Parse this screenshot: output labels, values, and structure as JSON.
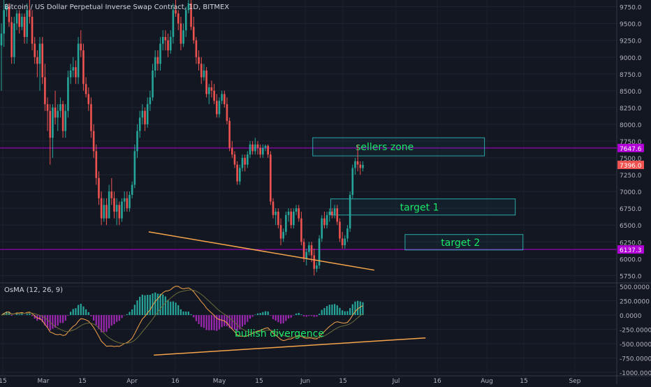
{
  "header": {
    "title": "Bitcoin / US Dollar Perpetual Inverse Swap Contract, 1D, BITMEX"
  },
  "osma": {
    "title": "OsMA (12, 26, 9)"
  },
  "colors": {
    "background": "#131722",
    "up": "#26a69a",
    "down": "#ef5350",
    "zone_border": "#2aa7a7",
    "zone_text": "#1be86a",
    "trendline": "#f5a44a",
    "horizontal_line": "#b000d6",
    "macd_line": "#f5a44a",
    "signal_line": "#6d6d3a",
    "hist_up": "#26a69a",
    "hist_down": "#9c27b0"
  },
  "chart_data": [
    {
      "type": "candlestick",
      "title": "Bitcoin / US Dollar Perpetual Inverse Swap Contract, 1D, BITMEX",
      "y_ticks": [
        "9750.0",
        "9500.0",
        "9250.0",
        "9000.0",
        "8750.0",
        "8500.0",
        "8250.0",
        "8000.0",
        "7750.0",
        "7500.0",
        "7250.0",
        "7000.0",
        "6750.0",
        "6500.0",
        "6250.0",
        "6000.0",
        "5750.0"
      ],
      "ylim": [
        5650,
        9850
      ],
      "x_ticks": [
        "15",
        "Mar",
        "15",
        "Apr",
        "16",
        "May",
        "15",
        "Jun",
        "15",
        "Jul",
        "16",
        "Aug",
        "15",
        "Sep"
      ],
      "price_labels": [
        {
          "value": 7647.6,
          "text": "7647.6",
          "color": "#b000d6"
        },
        {
          "value": 7396.0,
          "text": "7396.0",
          "color": "#ef5350"
        },
        {
          "value": 6137.3,
          "text": "6137.3",
          "color": "#b000d6"
        }
      ],
      "horizontal_lines": [
        7647.6,
        6137.3
      ],
      "zones": [
        {
          "label": "sellers zone",
          "from": "2018-06-04",
          "to": "2018-08-10",
          "low": 7530,
          "high": 7800
        },
        {
          "label": "target 1",
          "from": "2018-06-11",
          "to": "2018-08-22",
          "low": 6650,
          "high": 6890
        },
        {
          "label": "target 2",
          "from": "2018-07-10",
          "to": "2018-08-25",
          "low": 6130,
          "high": 6360
        }
      ],
      "trendline": [
        {
          "date": "2018-04-01",
          "value": 6400
        },
        {
          "date": "2018-06-28",
          "value": 5830
        }
      ],
      "anchor": {
        "first_date": "2018-02-02"
      },
      "candles_ohlc": [
        [
          9175,
          9500,
          8500,
          9350
        ],
        [
          9350,
          9850,
          9150,
          9700
        ],
        [
          9700,
          9800,
          9600,
          9750
        ],
        [
          9750,
          9800,
          9450,
          9520
        ],
        [
          9520,
          9600,
          8900,
          9000
        ],
        [
          9000,
          9600,
          8900,
          9500
        ],
        [
          9500,
          9700,
          9400,
          9650
        ],
        [
          9650,
          9700,
          9350,
          9450
        ],
        [
          9450,
          9650,
          9400,
          9600
        ],
        [
          9600,
          9650,
          9200,
          9300
        ],
        [
          9300,
          9800,
          9200,
          9700
        ],
        [
          9700,
          9850,
          9500,
          9600
        ],
        [
          9600,
          9700,
          9100,
          9200
        ],
        [
          9200,
          9300,
          8900,
          9000
        ],
        [
          9000,
          9100,
          8700,
          8900
        ],
        [
          8900,
          9300,
          8500,
          9200
        ],
        [
          9200,
          9300,
          8600,
          8700
        ],
        [
          8700,
          8900,
          8200,
          8300
        ],
        [
          8300,
          8400,
          7900,
          8200
        ],
        [
          8200,
          8300,
          7400,
          7800
        ],
        [
          7800,
          8300,
          7500,
          8250
        ],
        [
          8250,
          8500,
          8000,
          8100
        ],
        [
          8100,
          8300,
          7900,
          8200
        ],
        [
          8200,
          8400,
          8100,
          8300
        ],
        [
          8300,
          8350,
          7800,
          7900
        ],
        [
          7900,
          8300,
          7800,
          8200
        ],
        [
          8200,
          8800,
          8100,
          8700
        ],
        [
          8700,
          8900,
          8600,
          8800
        ],
        [
          8800,
          9000,
          8700,
          8850
        ],
        [
          8850,
          8950,
          8600,
          8700
        ],
        [
          8700,
          9300,
          8600,
          9200
        ],
        [
          9200,
          9400,
          9000,
          9100
        ],
        [
          9100,
          9200,
          8500,
          8600
        ],
        [
          8600,
          8700,
          8400,
          8450
        ],
        [
          8450,
          8550,
          8200,
          8300
        ],
        [
          8300,
          8400,
          7800,
          7900
        ],
        [
          7900,
          8000,
          7500,
          7600
        ],
        [
          7600,
          7700,
          7100,
          7200
        ],
        [
          7200,
          7300,
          6800,
          6900
        ],
        [
          6900,
          7000,
          6500,
          6600
        ],
        [
          6600,
          6900,
          6550,
          6800
        ],
        [
          6800,
          6900,
          6500,
          6600
        ],
        [
          6600,
          7100,
          6600,
          7000
        ],
        [
          7000,
          7200,
          6800,
          6900
        ],
        [
          6900,
          7000,
          6600,
          6700
        ],
        [
          6700,
          6900,
          6500,
          6800
        ],
        [
          6800,
          6850,
          6500,
          6600
        ],
        [
          6600,
          6900,
          6550,
          6850
        ],
        [
          6850,
          7000,
          6700,
          6900
        ],
        [
          6900,
          7000,
          6700,
          6750
        ],
        [
          6750,
          7000,
          6700,
          6950
        ],
        [
          6950,
          7150,
          6900,
          7100
        ],
        [
          7100,
          7700,
          7050,
          7600
        ],
        [
          7600,
          8000,
          7500,
          7900
        ],
        [
          7900,
          8200,
          7800,
          8100
        ],
        [
          8100,
          8300,
          8000,
          8200
        ],
        [
          8200,
          8250,
          7900,
          8000
        ],
        [
          8000,
          8400,
          7950,
          8300
        ],
        [
          8300,
          8500,
          8200,
          8400
        ],
        [
          8400,
          8900,
          8350,
          8800
        ],
        [
          8800,
          9100,
          8700,
          9000
        ],
        [
          9000,
          9100,
          8800,
          8900
        ],
        [
          8900,
          9300,
          8800,
          9200
        ],
        [
          9200,
          9400,
          9100,
          9300
        ],
        [
          9300,
          9400,
          9100,
          9250
        ],
        [
          9250,
          9350,
          9000,
          9100
        ],
        [
          9100,
          9400,
          9050,
          9300
        ],
        [
          9300,
          9800,
          9200,
          9700
        ],
        [
          9700,
          9850,
          9600,
          9650
        ],
        [
          9650,
          9700,
          9400,
          9500
        ],
        [
          9500,
          9600,
          9100,
          9200
        ],
        [
          9200,
          9500,
          9150,
          9400
        ],
        [
          9400,
          9750,
          9300,
          9700
        ],
        [
          9700,
          9850,
          9650,
          9800
        ],
        [
          9800,
          9850,
          9400,
          9450
        ],
        [
          9450,
          9600,
          9200,
          9250
        ],
        [
          9250,
          9300,
          8900,
          9000
        ],
        [
          9000,
          9100,
          8800,
          8900
        ],
        [
          8900,
          9000,
          8600,
          8700
        ],
        [
          8700,
          8900,
          8650,
          8800
        ],
        [
          8800,
          8850,
          8400,
          8450
        ],
        [
          8450,
          8600,
          8300,
          8550
        ],
        [
          8550,
          8650,
          8400,
          8500
        ],
        [
          8500,
          8600,
          8300,
          8350
        ],
        [
          8350,
          8450,
          8100,
          8150
        ],
        [
          8150,
          8400,
          8100,
          8350
        ],
        [
          8350,
          8500,
          8300,
          8450
        ],
        [
          8450,
          8500,
          8250,
          8300
        ],
        [
          8300,
          8400,
          8000,
          8050
        ],
        [
          8050,
          8100,
          7600,
          7650
        ],
        [
          7650,
          7750,
          7500,
          7550
        ],
        [
          7550,
          7600,
          7350,
          7400
        ],
        [
          7400,
          7450,
          7100,
          7150
        ],
        [
          7150,
          7400,
          7100,
          7350
        ],
        [
          7350,
          7550,
          7300,
          7500
        ],
        [
          7500,
          7550,
          7300,
          7400
        ],
        [
          7400,
          7600,
          7350,
          7550
        ],
        [
          7550,
          7750,
          7500,
          7700
        ],
        [
          7700,
          7750,
          7550,
          7600
        ],
        [
          7600,
          7800,
          7550,
          7700
        ],
        [
          7700,
          7750,
          7550,
          7650
        ],
        [
          7650,
          7700,
          7500,
          7550
        ],
        [
          7550,
          7700,
          7500,
          7650
        ],
        [
          7650,
          7700,
          7600,
          7680
        ],
        [
          7680,
          7700,
          7500,
          7550
        ],
        [
          7550,
          7600,
          6800,
          6850
        ],
        [
          6850,
          6900,
          6600,
          6650
        ],
        [
          6650,
          6750,
          6500,
          6700
        ],
        [
          6700,
          6750,
          6450,
          6500
        ],
        [
          6500,
          6600,
          6200,
          6300
        ],
        [
          6300,
          6450,
          6250,
          6400
        ],
        [
          6400,
          6700,
          6350,
          6650
        ],
        [
          6650,
          6750,
          6550,
          6700
        ],
        [
          6700,
          6750,
          6450,
          6500
        ],
        [
          6500,
          6750,
          6450,
          6700
        ],
        [
          6700,
          6800,
          6650,
          6750
        ],
        [
          6750,
          6800,
          6550,
          6600
        ],
        [
          6600,
          6700,
          6200,
          6250
        ],
        [
          6250,
          6300,
          5950,
          6000
        ],
        [
          6000,
          6150,
          5900,
          6100
        ],
        [
          6100,
          6250,
          6050,
          6200
        ],
        [
          6200,
          6250,
          5950,
          6050
        ],
        [
          6050,
          6150,
          5750,
          5850
        ],
        [
          5850,
          5950,
          5800,
          5900
        ],
        [
          5900,
          6350,
          5850,
          6300
        ],
        [
          6300,
          6650,
          6250,
          6600
        ],
        [
          6600,
          6700,
          6450,
          6500
        ],
        [
          6500,
          6700,
          6450,
          6650
        ],
        [
          6650,
          6750,
          6550,
          6700
        ],
        [
          6700,
          6750,
          6600,
          6650
        ],
        [
          6650,
          6800,
          6600,
          6750
        ],
        [
          6750,
          6800,
          6500,
          6550
        ],
        [
          6550,
          6600,
          6250,
          6300
        ],
        [
          6300,
          6400,
          6150,
          6200
        ],
        [
          6200,
          6350,
          6150,
          6300
        ],
        [
          6300,
          6500,
          6250,
          6450
        ],
        [
          6450,
          7000,
          6400,
          6950
        ],
        [
          6950,
          7400,
          6900,
          7350
        ],
        [
          7350,
          7500,
          7250,
          7450
        ],
        [
          7450,
          7700,
          7300,
          7400
        ],
        [
          7400,
          7450,
          7250,
          7350
        ],
        [
          7350,
          7450,
          7300,
          7396
        ]
      ]
    },
    {
      "type": "bar",
      "title": "OsMA (12, 26, 9)",
      "y_ticks": [
        "500.0000",
        "250.0000",
        "0.0000",
        "-250.0000",
        "-500.0000",
        "-750.0000",
        "-1000.0000"
      ],
      "ylim": [
        -1050,
        550
      ],
      "annotation": "bullish divergence"
    }
  ]
}
